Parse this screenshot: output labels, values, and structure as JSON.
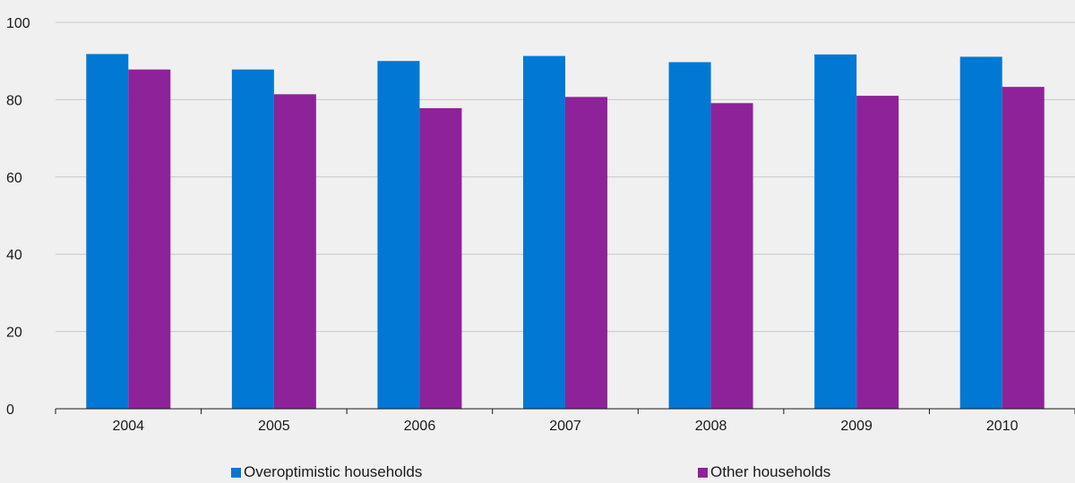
{
  "chart_data": {
    "type": "bar",
    "categories": [
      "2004",
      "2005",
      "2006",
      "2007",
      "2008",
      "2009",
      "2010"
    ],
    "series": [
      {
        "name": "Overoptimistic households",
        "color": "#0078d4",
        "values": [
          91.8,
          87.8,
          90.0,
          91.3,
          89.7,
          91.7,
          91.1
        ]
      },
      {
        "name": "Other households",
        "color": "#8e2299",
        "values": [
          87.8,
          81.4,
          77.8,
          80.7,
          79.1,
          81.0,
          83.3
        ]
      }
    ],
    "title": "",
    "xlabel": "",
    "ylabel": "",
    "ylim": [
      0,
      100
    ],
    "yticks": [
      "0",
      "20",
      "40",
      "60",
      "80",
      "100"
    ],
    "grid": true,
    "legend_position": "bottom"
  }
}
